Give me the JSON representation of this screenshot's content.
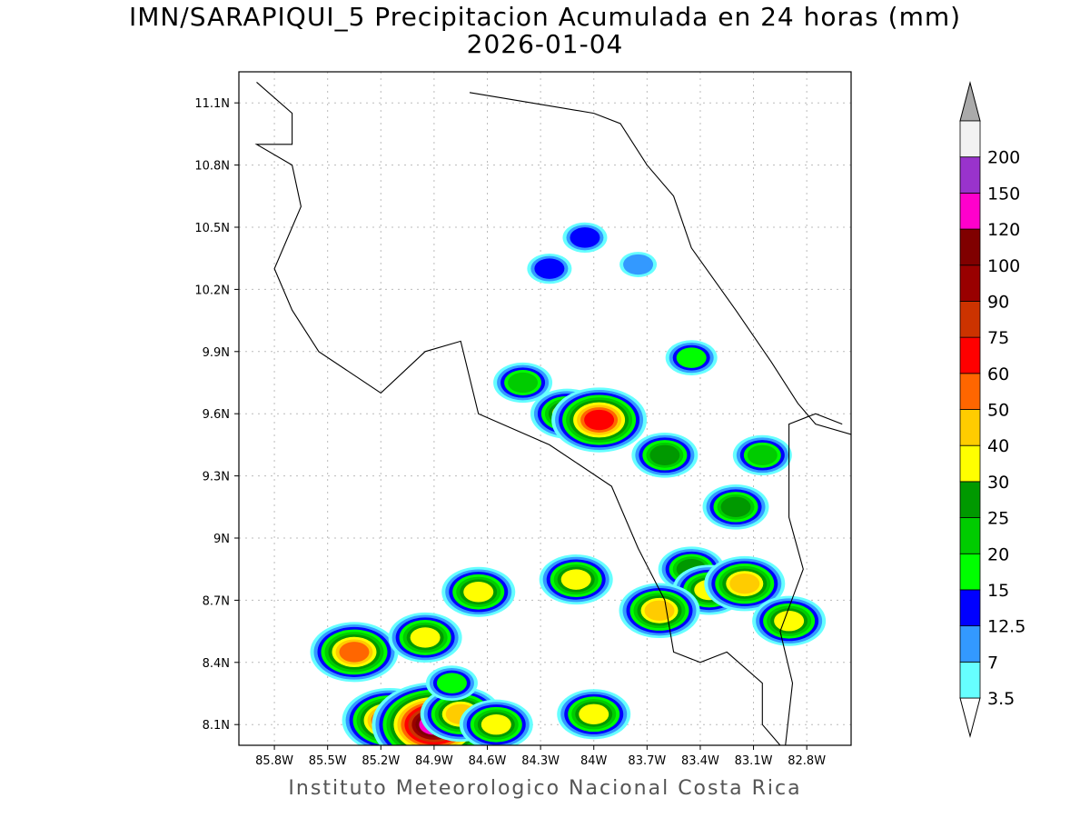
{
  "title": {
    "line1": "IMN/SARAPIQUI_5 Precipitacion Acumulada en 24 horas (mm)",
    "line2": "2026-01-04"
  },
  "footer": "Instituto Meteorologico Nacional Costa Rica",
  "map": {
    "lon_range": [
      -86.0,
      -82.55
    ],
    "lat_range": [
      8.0,
      11.25
    ],
    "lon_ticks": [
      "85.8W",
      "85.5W",
      "85.2W",
      "84.9W",
      "84.6W",
      "84.3W",
      "84W",
      "83.7W",
      "83.4W",
      "83.1W",
      "82.8W"
    ],
    "lon_values": [
      -85.8,
      -85.5,
      -85.2,
      -84.9,
      -84.6,
      -84.3,
      -84.0,
      -83.7,
      -83.4,
      -83.1,
      -82.8
    ],
    "lat_ticks": [
      "11.1N",
      "10.8N",
      "10.5N",
      "10.2N",
      "9.9N",
      "9.6N",
      "9.3N",
      "9N",
      "8.7N",
      "8.4N",
      "8.1N"
    ],
    "lat_values": [
      11.1,
      10.8,
      10.5,
      10.2,
      9.9,
      9.6,
      9.3,
      9.0,
      8.7,
      8.4,
      8.1
    ],
    "grid": true,
    "coastline": [
      [
        -85.9,
        11.2
      ],
      [
        -85.7,
        11.05
      ],
      [
        -85.7,
        10.9
      ],
      [
        -85.9,
        10.9
      ],
      [
        -85.7,
        10.8
      ],
      [
        -85.65,
        10.6
      ],
      [
        -85.8,
        10.3
      ],
      [
        -85.7,
        10.1
      ],
      [
        -85.55,
        9.9
      ],
      [
        -85.2,
        9.7
      ],
      [
        -84.95,
        9.9
      ],
      [
        -84.75,
        9.95
      ],
      [
        -84.65,
        9.6
      ],
      [
        -84.25,
        9.45
      ],
      [
        -83.9,
        9.25
      ],
      [
        -83.75,
        8.95
      ],
      [
        -83.6,
        8.7
      ],
      [
        -83.55,
        8.45
      ],
      [
        -83.4,
        8.4
      ],
      [
        -83.25,
        8.45
      ],
      [
        -83.05,
        8.3
      ],
      [
        -83.05,
        8.1
      ],
      [
        -82.95,
        8.0
      ]
    ],
    "caribbean_coast": [
      [
        -84.7,
        11.15
      ],
      [
        -84.35,
        11.1
      ],
      [
        -84.0,
        11.05
      ],
      [
        -83.85,
        11.0
      ],
      [
        -83.7,
        10.8
      ],
      [
        -83.55,
        10.65
      ],
      [
        -83.45,
        10.4
      ],
      [
        -83.2,
        10.1
      ],
      [
        -83.0,
        9.85
      ],
      [
        -82.85,
        9.65
      ],
      [
        -82.75,
        9.55
      ],
      [
        -82.55,
        9.5
      ]
    ],
    "border_south": [
      [
        -82.92,
        8.0
      ],
      [
        -82.88,
        8.3
      ],
      [
        -82.95,
        8.55
      ],
      [
        -82.82,
        8.85
      ],
      [
        -82.9,
        9.1
      ],
      [
        -82.9,
        9.55
      ],
      [
        -82.75,
        9.6
      ],
      [
        -82.6,
        9.55
      ]
    ]
  },
  "colorbar": {
    "labels": [
      "3.5",
      "7",
      "12.5",
      "15",
      "20",
      "25",
      "30",
      "40",
      "50",
      "60",
      "75",
      "90",
      "100",
      "120",
      "150",
      "200"
    ],
    "colors": [
      "#66ffff",
      "#3399ff",
      "#0000ff",
      "#00ff00",
      "#00cc00",
      "#009900",
      "#ffff00",
      "#ffcc00",
      "#ff6600",
      "#ff0000",
      "#cc3300",
      "#990000",
      "#800000",
      "#ff00cc",
      "#9933cc",
      "#f2f2f2"
    ],
    "low_arrow_color": "#ffffff",
    "high_arrow_color": "#aaaaaa"
  },
  "chart_data": {
    "type": "heatmap",
    "title": "IMN/SARAPIQUI_5 Precipitacion Acumulada en 24 horas (mm)",
    "subtitle": "2026-01-04",
    "cells": [
      {
        "lon": -84.05,
        "lat": 10.45,
        "value": 12.5
      },
      {
        "lon": -84.25,
        "lat": 10.3,
        "value": 12.5
      },
      {
        "lon": -83.75,
        "lat": 10.32,
        "value": 7
      },
      {
        "lon": -84.4,
        "lat": 9.75,
        "value": 20
      },
      {
        "lon": -84.15,
        "lat": 9.6,
        "value": 30
      },
      {
        "lon": -83.97,
        "lat": 9.57,
        "value": 60
      },
      {
        "lon": -83.6,
        "lat": 9.4,
        "value": 25
      },
      {
        "lon": -83.45,
        "lat": 9.87,
        "value": 15
      },
      {
        "lon": -83.05,
        "lat": 9.4,
        "value": 20
      },
      {
        "lon": -83.2,
        "lat": 9.15,
        "value": 25
      },
      {
        "lon": -84.1,
        "lat": 8.8,
        "value": 30
      },
      {
        "lon": -84.65,
        "lat": 8.74,
        "value": 30
      },
      {
        "lon": -83.45,
        "lat": 8.85,
        "value": 25
      },
      {
        "lon": -83.35,
        "lat": 8.75,
        "value": 30
      },
      {
        "lon": -83.15,
        "lat": 8.78,
        "value": 40
      },
      {
        "lon": -83.63,
        "lat": 8.65,
        "value": 40
      },
      {
        "lon": -82.9,
        "lat": 8.6,
        "value": 30
      },
      {
        "lon": -85.35,
        "lat": 8.45,
        "value": 50
      },
      {
        "lon": -84.95,
        "lat": 8.52,
        "value": 30
      },
      {
        "lon": -85.15,
        "lat": 8.12,
        "value": 60
      },
      {
        "lon": -84.9,
        "lat": 8.1,
        "value": 120
      },
      {
        "lon": -84.75,
        "lat": 8.15,
        "value": 40
      },
      {
        "lon": -84.55,
        "lat": 8.1,
        "value": 30
      },
      {
        "lon": -84.0,
        "lat": 8.15,
        "value": 30
      },
      {
        "lon": -84.8,
        "lat": 8.3,
        "value": 15
      }
    ]
  }
}
